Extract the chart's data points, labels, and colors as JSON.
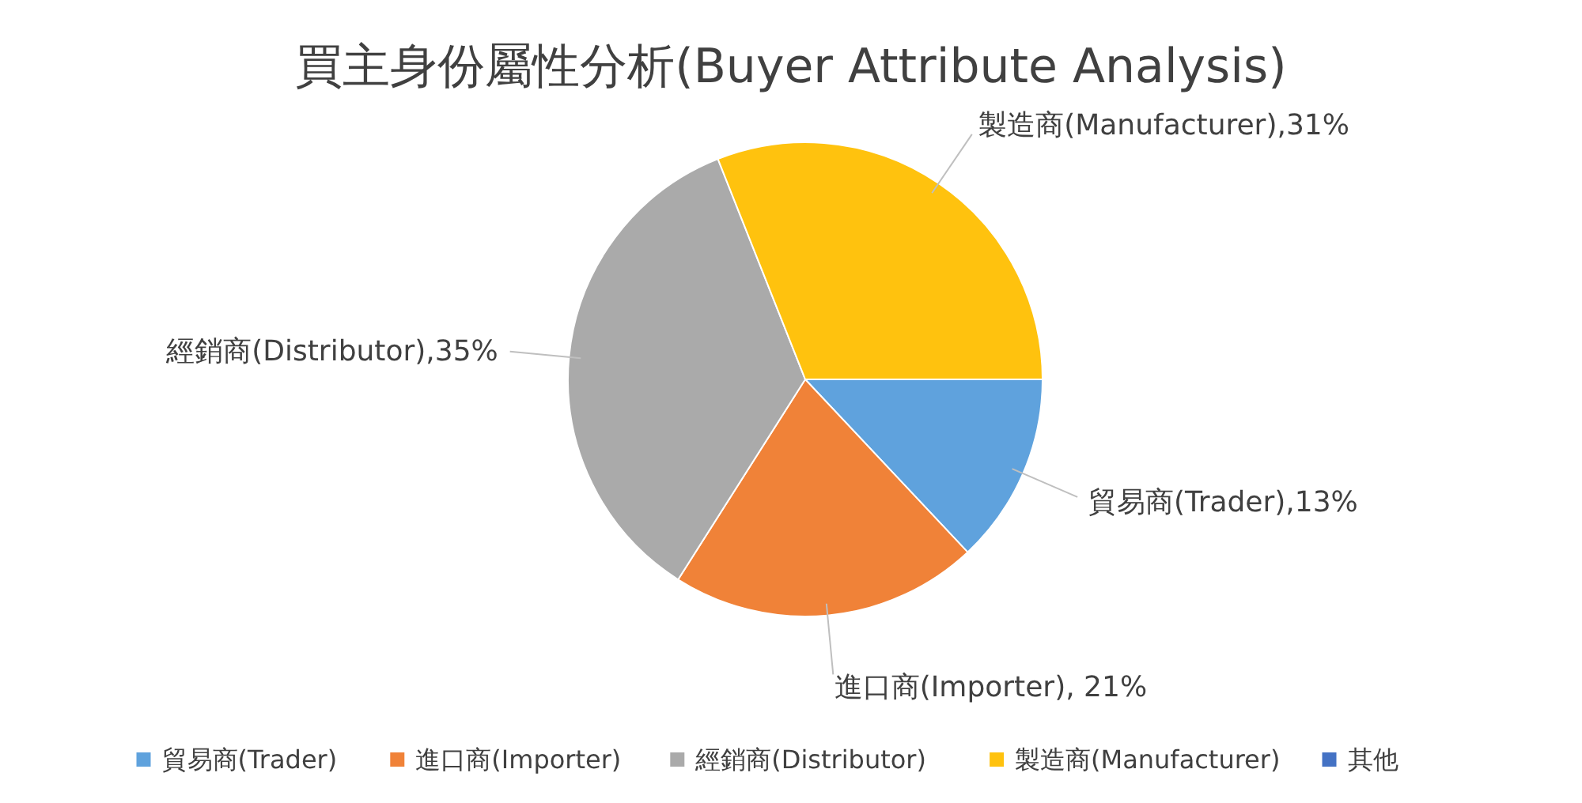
{
  "chart_data": {
    "type": "pie",
    "title": "買主身份屬性分析(Buyer Attribute Analysis)",
    "categories": [
      "貿易商(Trader)",
      "進口商(Importer)",
      "經銷商(Distributor)",
      "製造商(Manufacturer)",
      "其他"
    ],
    "values": [
      13,
      21,
      35,
      31,
      0
    ],
    "colors": [
      "#5fa2dd",
      "#f08238",
      "#aaaaaa",
      "#ffc20e",
      "#4472c4"
    ],
    "value_labels": [
      "貿易商(Trader),13%",
      "進口商(Importer), 21%",
      "經銷商(Distributor),35%",
      "製造商(Manufacturer),31%",
      null
    ],
    "legend": "bottom"
  }
}
